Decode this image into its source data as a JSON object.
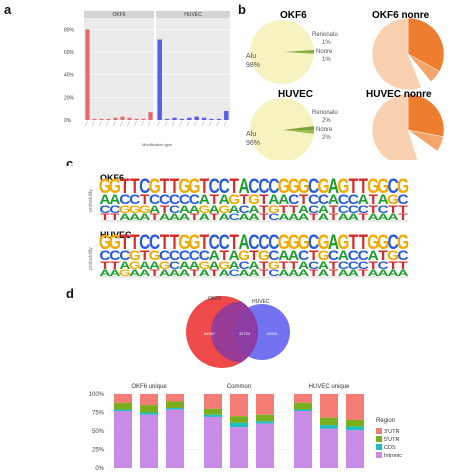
{
  "panels": {
    "a": "a",
    "b": "b",
    "c": "c",
    "d": "d"
  },
  "colors": {
    "okf6_bar": "#e8696d",
    "huvec_bar": "#5a5de6",
    "pie_alu": "#f6f3c0",
    "pie_alu_light": "#fbf8d8",
    "pie_green": "#7aa23b",
    "pie_orange_dark": "#ee7d2f",
    "pie_orange_mid": "#f4a56a",
    "pie_orange_light": "#f9d1b0",
    "venn_red": "#ee3b3b",
    "venn_blue": "#5b5bf0",
    "utr3": "#f47c74",
    "utr5": "#7aae1f",
    "cds": "#1fbfbf",
    "intronic": "#c98ce6"
  },
  "panel_a": {
    "facets": [
      "OKF6",
      "HUVEC"
    ],
    "y_ticks": [
      "80%",
      "60%",
      "40%",
      "20%",
      "0%"
    ],
    "x_title": "Modification type",
    "chart_data": [
      {
        "type": "bar",
        "title": "OKF6",
        "values": [
          80,
          1,
          1,
          1,
          2,
          3,
          2,
          1,
          1,
          7
        ],
        "ylim": [
          0,
          90
        ]
      },
      {
        "type": "bar",
        "title": "HUVEC",
        "values": [
          71,
          1,
          2,
          1,
          2,
          3,
          2,
          1,
          1,
          8
        ],
        "ylim": [
          0,
          90
        ]
      }
    ]
  },
  "panel_b": {
    "chart_data": [
      {
        "type": "pie",
        "title": "OKF6",
        "labels": [
          "Alu",
          "Rerionalu",
          "Nonre"
        ],
        "values": [
          98,
          1,
          1
        ],
        "label_text": [
          "Alu\n98%",
          "Rerionalu\n1%",
          "Nonre\n1%"
        ]
      },
      {
        "type": "pie",
        "title": "HUVEC",
        "labels": [
          "Alu",
          "Rerionalu",
          "Nonre"
        ],
        "values": [
          96,
          2,
          2
        ],
        "label_text": [
          "Alu\n96%",
          "Rerionalu\n2%",
          "Nonre\n2%"
        ]
      },
      {
        "type": "pie",
        "title": "OKF6 nonre",
        "values": [
          33,
          6,
          5,
          56
        ]
      },
      {
        "type": "pie",
        "title": "HUVEC nonre",
        "values": [
          28,
          7,
          10,
          55
        ]
      }
    ],
    "titles": {
      "okf6": "OKF6",
      "huvec": "HUVEC",
      "okf6_nonre": "OKF6 nonre",
      "huvec_nonre": "HUVEC nonre"
    },
    "alu_okf6": "Alu",
    "alu_okf6_pct": "98%",
    "alu_huvec": "Alu",
    "alu_huvec_pct": "96%",
    "rerion_okf6": "Rerionalu",
    "rerion_okf6_pct": "1%",
    "nonre_okf6": "Nonre",
    "nonre_okf6_pct": "1%",
    "rerion_huvec": "Rerionalu",
    "rerion_huvec_pct": "2%",
    "nonre_huvec": "Nonre",
    "nonre_huvec_pct": "2%"
  },
  "panel_c": {
    "titles": [
      "OKF6",
      "HUVEC"
    ],
    "ylabel": "probability",
    "sequence_okf6": "GGTTCGTTGGTCCTACCCGGGCGAGTTGGCG",
    "sequence_huvec": "GGTTCCTTGGTCCTACCCGGGCGAGTTGGCG",
    "rows_okf6": [
      "GGTTCGTTGGTCCTACCCGGGCGAGTTGGCG",
      "AACCTCCCCCATAGTGTAACTCCACCATAGC",
      "CCGGGATCAAGAGACATGTTACATCCCTCTT",
      "TTAAATAAATATACAATCAAATATAATAAATAA"
    ],
    "rows_huvec": [
      "GGTTCCTTGGTCCTACCCGGGCGAGTTGGCG",
      "CCCGTGCCCCCATAGTGCAACTGCACCATGC",
      "TTAGAAGCAAGAGACATGTTACATCCCTCTT",
      "AAGAATAAATATACAATCAAATATAATAAAA"
    ]
  },
  "panel_d": {
    "venn": {
      "set_a": "OKF6",
      "set_b": "HUVEC",
      "only_a": "66967",
      "both": "32724",
      "only_b": "19433"
    },
    "chart_data": {
      "type": "bar",
      "groups": [
        "OKF6 unique",
        "Common",
        "HUVEC unique"
      ],
      "y_ticks": [
        "100%",
        "75%",
        "50%",
        "25%",
        "0%"
      ],
      "legend_title": "Region",
      "series": [
        {
          "name": "3'UTR",
          "values": [
            12,
            15,
            10,
            20,
            30,
            28,
            12,
            32,
            35
          ]
        },
        {
          "name": "5'UTR",
          "values": [
            9,
            10,
            9,
            8,
            9,
            9,
            9,
            10,
            9
          ]
        },
        {
          "name": "CDS",
          "values": [
            2,
            3,
            2,
            3,
            6,
            3,
            2,
            5,
            5
          ]
        },
        {
          "name": "Intronic",
          "values": [
            77,
            72,
            79,
            69,
            55,
            60,
            77,
            53,
            51
          ]
        }
      ]
    }
  }
}
